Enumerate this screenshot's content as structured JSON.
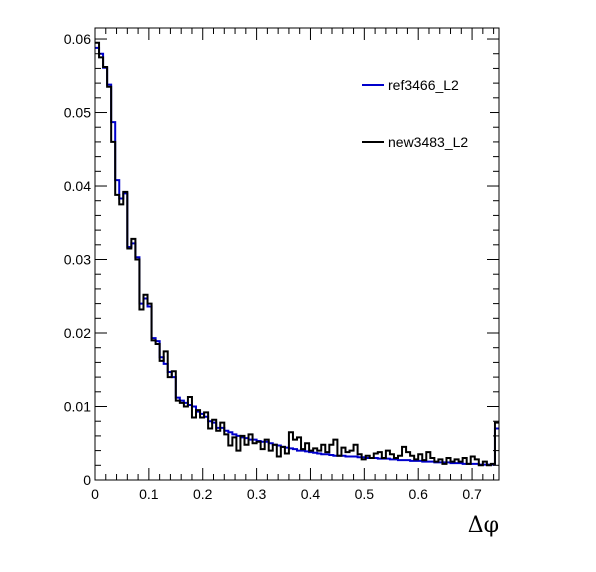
{
  "chart_data": {
    "type": "line",
    "style": "step-histogram",
    "xlabel": "Δφ",
    "ylabel": "",
    "xlim": [
      0,
      0.75
    ],
    "ylim": [
      0,
      0.0615
    ],
    "x_bin_width": 0.0075,
    "x_ticks": [
      "0",
      "0.1",
      "0.2",
      "0.3",
      "0.4",
      "0.5",
      "0.6",
      "0.7"
    ],
    "x_tick_values": [
      0,
      0.1,
      0.2,
      0.3,
      0.4,
      0.5,
      0.6,
      0.7
    ],
    "y_ticks": [
      "0",
      "0.01",
      "0.02",
      "0.03",
      "0.04",
      "0.05",
      "0.06"
    ],
    "y_tick_values": [
      0,
      0.01,
      0.02,
      0.03,
      0.04,
      0.05,
      0.06
    ],
    "legend_position": "top-right",
    "grid": false,
    "series": [
      {
        "name": "ref3466_L2",
        "color": "#0000cc",
        "values": [
          0.0588,
          0.058,
          0.0561,
          0.0538,
          0.0487,
          0.0408,
          0.0383,
          0.039,
          0.0317,
          0.0322,
          0.0303,
          0.024,
          0.0247,
          0.0236,
          0.0193,
          0.0189,
          0.0167,
          0.0158,
          0.0147,
          0.014,
          0.0112,
          0.0108,
          0.0105,
          0.0102,
          0.01,
          0.0093,
          0.009,
          0.0086,
          0.008,
          0.0078,
          0.0071,
          0.0071,
          0.0067,
          0.0065,
          0.0062,
          0.006,
          0.0058,
          0.0057,
          0.0055,
          0.0055,
          0.0053,
          0.0052,
          0.0052,
          0.005,
          0.0048,
          0.0047,
          0.0045,
          0.0044,
          0.0043,
          0.0042,
          0.004,
          0.004,
          0.0039,
          0.0038,
          0.0037,
          0.0036,
          0.0035,
          0.0035,
          0.0034,
          0.0033,
          0.0033,
          0.0033,
          0.0032,
          0.0032,
          0.0032,
          0.0031,
          0.0031,
          0.003,
          0.003,
          0.003,
          0.0029,
          0.0029,
          0.0029,
          0.0028,
          0.0028,
          0.0027,
          0.0027,
          0.0027,
          0.0026,
          0.0026,
          0.0026,
          0.0025,
          0.0025,
          0.0025,
          0.0024,
          0.0024,
          0.0024,
          0.0024,
          0.0023,
          0.0023,
          0.0023,
          0.0022,
          0.0022,
          0.0022,
          0.0022,
          0.0021,
          0.0021,
          0.0021,
          0.0021,
          0.007
        ]
      },
      {
        "name": "new3483_L2",
        "color": "#000000",
        "values": [
          0.0595,
          0.0575,
          0.0562,
          0.0535,
          0.046,
          0.0388,
          0.0375,
          0.0392,
          0.0315,
          0.0328,
          0.03,
          0.0232,
          0.0252,
          0.024,
          0.019,
          0.0185,
          0.0162,
          0.0175,
          0.014,
          0.0148,
          0.0108,
          0.0105,
          0.01,
          0.0113,
          0.0085,
          0.0095,
          0.0085,
          0.0092,
          0.007,
          0.0082,
          0.0067,
          0.0078,
          0.0062,
          0.0047,
          0.0058,
          0.004,
          0.006,
          0.0048,
          0.0062,
          0.005,
          0.0052,
          0.0042,
          0.0055,
          0.004,
          0.0048,
          0.0032,
          0.0045,
          0.0036,
          0.0065,
          0.0055,
          0.0058,
          0.0042,
          0.005,
          0.004,
          0.0043,
          0.004,
          0.0048,
          0.0038,
          0.0048,
          0.0055,
          0.0033,
          0.0044,
          0.0038,
          0.004,
          0.0048,
          0.0035,
          0.0028,
          0.0033,
          0.003,
          0.0036,
          0.0038,
          0.003,
          0.004,
          0.0035,
          0.003,
          0.0033,
          0.0045,
          0.0038,
          0.0033,
          0.0028,
          0.0035,
          0.0027,
          0.0038,
          0.003,
          0.0025,
          0.0028,
          0.0022,
          0.003,
          0.0025,
          0.0028,
          0.0025,
          0.003,
          0.0022,
          0.0032,
          0.0028,
          0.002,
          0.0025,
          0.002,
          0.0022,
          0.0078
        ]
      }
    ]
  }
}
